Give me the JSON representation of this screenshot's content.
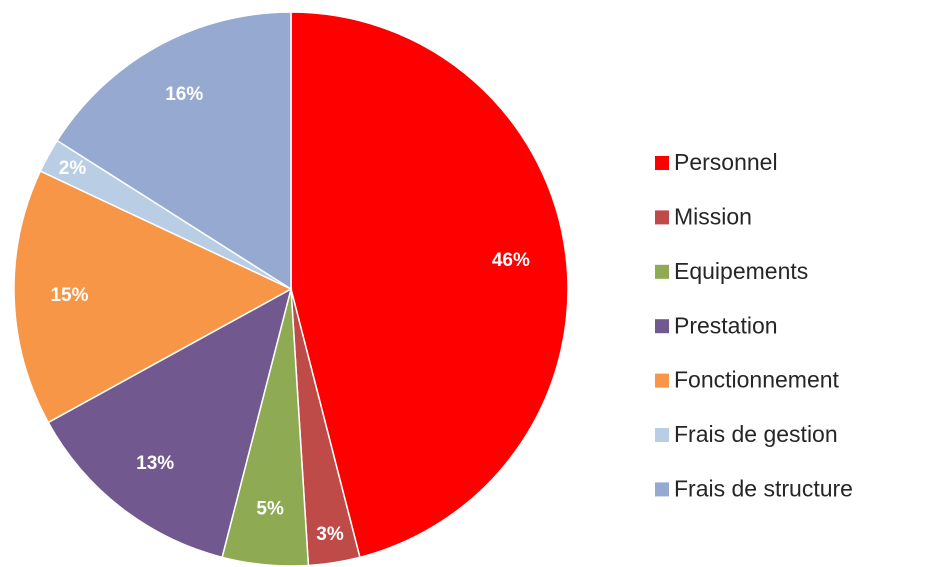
{
  "chart_data": {
    "type": "pie",
    "categories": [
      "Personnel",
      "Mission",
      "Equipements",
      "Prestation",
      "Fonctionnement",
      "Frais de gestion",
      "Frais de structure"
    ],
    "values": [
      46,
      3,
      5,
      13,
      15,
      2,
      16
    ],
    "value_labels": [
      "46%",
      "3%",
      "5%",
      "13%",
      "15%",
      "2%",
      "16%"
    ],
    "colors": [
      "#ff0000",
      "#be4b48",
      "#8eaa52",
      "#71588f",
      "#f79646",
      "#b9cde5",
      "#95a9d1"
    ],
    "legend": "right"
  }
}
